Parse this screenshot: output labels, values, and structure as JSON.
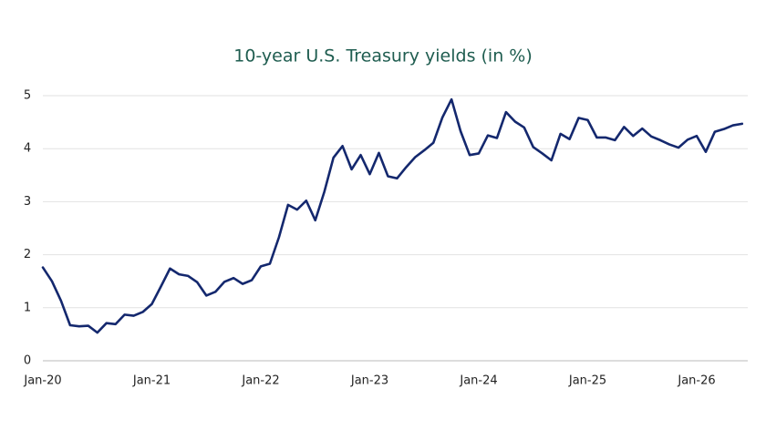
{
  "chart_data": {
    "type": "line",
    "title": "10-year U.S. Treasury yields (in %)",
    "categories": [
      "Jan-20",
      null,
      null,
      null,
      null,
      null,
      null,
      null,
      null,
      null,
      null,
      null,
      "Jan-21",
      null,
      null,
      null,
      null,
      null,
      null,
      null,
      null,
      null,
      null,
      null,
      "Jan-22",
      null,
      null,
      null,
      null,
      null,
      null,
      null,
      null,
      null,
      null,
      null,
      "Jan-23",
      null,
      null,
      null,
      null,
      null,
      null,
      null,
      null,
      null,
      null,
      null,
      "Jan-24",
      null,
      null,
      null,
      null,
      null,
      null,
      null,
      null,
      null,
      null,
      null,
      "Jan-25",
      null,
      null,
      null,
      null,
      null,
      null,
      null,
      null,
      null,
      null,
      null,
      "Jan-26",
      null,
      null,
      null,
      null,
      null
    ],
    "values": [
      1.76,
      1.5,
      1.13,
      0.67,
      0.65,
      0.66,
      0.53,
      0.71,
      0.69,
      0.87,
      0.85,
      0.92,
      1.07,
      1.4,
      1.74,
      1.63,
      1.6,
      1.48,
      1.23,
      1.3,
      1.49,
      1.56,
      1.45,
      1.52,
      1.78,
      1.83,
      2.33,
      2.94,
      2.85,
      3.02,
      2.65,
      3.19,
      3.83,
      4.05,
      3.61,
      3.88,
      3.52,
      3.92,
      3.48,
      3.44,
      3.65,
      3.84,
      3.97,
      4.11,
      4.59,
      4.93,
      4.33,
      3.88,
      3.91,
      4.25,
      4.2,
      4.69,
      4.51,
      4.4,
      4.03,
      3.91,
      3.78,
      4.28,
      4.18,
      4.58,
      4.54,
      4.21,
      4.21,
      4.16,
      4.41,
      4.24,
      4.38,
      4.23,
      4.16,
      4.08,
      4.02,
      4.17,
      4.24,
      3.94,
      4.32,
      4.37,
      4.44,
      4.47
    ],
    "color": "#14286e",
    "ylim": [
      0,
      5
    ],
    "yticks": [
      0,
      1,
      2,
      3,
      4,
      5
    ],
    "grid": true
  }
}
